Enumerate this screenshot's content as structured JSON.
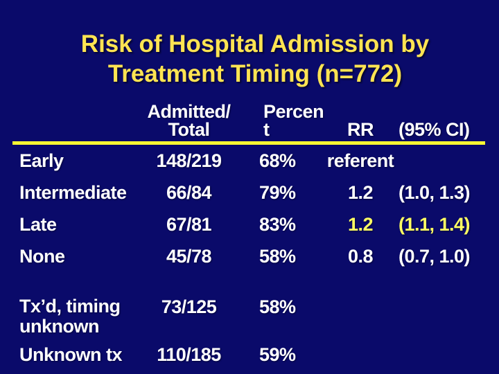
{
  "colors": {
    "bg": "#0a0a6a",
    "title": "#ffe452",
    "divider": "#feff32",
    "text": "#ffffff",
    "highlight": "#ffff63"
  },
  "title": {
    "line1": "Risk of Hospital Admission by",
    "line2": "Treatment Timing (n=772)"
  },
  "table": {
    "headers": {
      "label": "",
      "admitted_total": "Admitted/\nTotal",
      "percent": "Percen\nt",
      "rr": "RR",
      "ci": "(95% CI)"
    },
    "rows": [
      {
        "label": "Early",
        "admitted_total": "148/219",
        "percent": "68%",
        "rr": "referent",
        "ci": "",
        "highlight": false
      },
      {
        "label": "Intermediate",
        "admitted_total": "66/84",
        "percent": "79%",
        "rr": "1.2",
        "ci": "(1.0, 1.3)",
        "highlight": false
      },
      {
        "label": "Late",
        "admitted_total": "67/81",
        "percent": "83%",
        "rr": "1.2",
        "ci": "(1.1, 1.4)",
        "highlight": true
      },
      {
        "label": "None",
        "admitted_total": "45/78",
        "percent": "58%",
        "rr": "0.8",
        "ci": "(0.7, 1.0)",
        "highlight": false
      },
      {
        "label": "Tx’d, timing unknown",
        "admitted_total": "73/125",
        "percent": "58%",
        "rr": "",
        "ci": "",
        "highlight": false
      },
      {
        "label": "Unknown tx",
        "admitted_total": "110/185",
        "percent": "59%",
        "rr": "",
        "ci": "",
        "highlight": false
      }
    ]
  }
}
